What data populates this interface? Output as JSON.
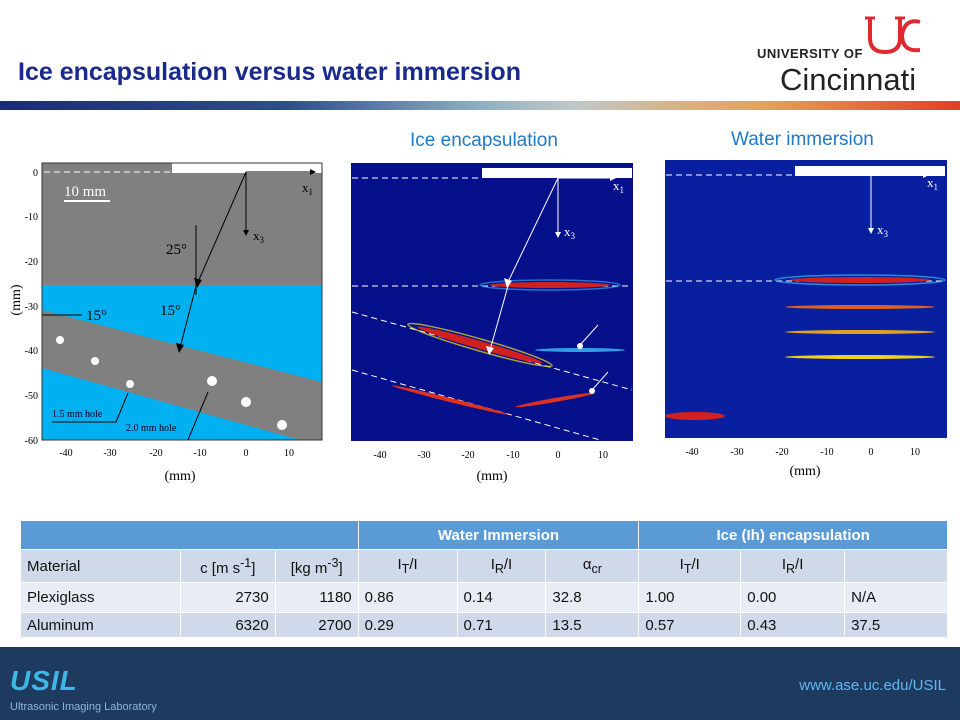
{
  "header": {
    "title": "Ice encapsulation versus water immersion",
    "logo_top": "UNIVERSITY OF",
    "logo_bottom": "Cincinnati"
  },
  "fig_left": {
    "xlabel": "(mm)",
    "ylabel": "(mm)",
    "xticks": [
      "-40",
      "-30",
      "-20",
      "-10",
      "0",
      "10"
    ],
    "yticks": [
      "0",
      "-10",
      "-20",
      "-30",
      "-40",
      "-50",
      "-60"
    ],
    "scale": "10 mm",
    "x1": "x",
    "x1_sub": "1",
    "x3": "x",
    "x3_sub": "3",
    "angle1": "25°",
    "angle2": "15°",
    "angle3": "15°",
    "hole1": "1.5 mm hole",
    "hole2": "2.0 mm hole",
    "colors": {
      "plexi": "#808080",
      "water": "#00b0f0"
    }
  },
  "fig_mid": {
    "title": "Ice encapsulation",
    "xlabel": "(mm)",
    "xticks": [
      "-40",
      "-30",
      "-20",
      "-10",
      "0",
      "10"
    ],
    "x1": "x",
    "x1_sub": "1",
    "x3": "x",
    "x3_sub": "3"
  },
  "fig_right": {
    "title": "Water immersion",
    "xlabel": "(mm)",
    "xticks": [
      "-40",
      "-30",
      "-20",
      "-10",
      "0",
      "10"
    ],
    "x1": "x",
    "x1_sub": "1",
    "x3": "x",
    "x3_sub": "3"
  },
  "table": {
    "group_headers": [
      "",
      "Water Immersion",
      "Ice (Ih) encapsulation"
    ],
    "columns": [
      "Material",
      "c [m s-1]",
      "[kg m-3]",
      "IT/I",
      "IR/I",
      "αcr",
      "IT/I",
      "IR/I",
      ""
    ],
    "rows": [
      [
        "Plexiglass",
        "2730",
        "1180",
        "0.86",
        "0.14",
        "32.8",
        "1.00",
        "0.00",
        "N/A"
      ],
      [
        "Aluminum",
        "6320",
        "2700",
        "0.29",
        "0.71",
        "13.5",
        "0.57",
        "0.43",
        "37.5"
      ]
    ]
  },
  "footer": {
    "logo": "USIL",
    "lab": "Ultrasonic Imaging Laboratory",
    "url": "www.ase.uc.edu/USIL"
  }
}
